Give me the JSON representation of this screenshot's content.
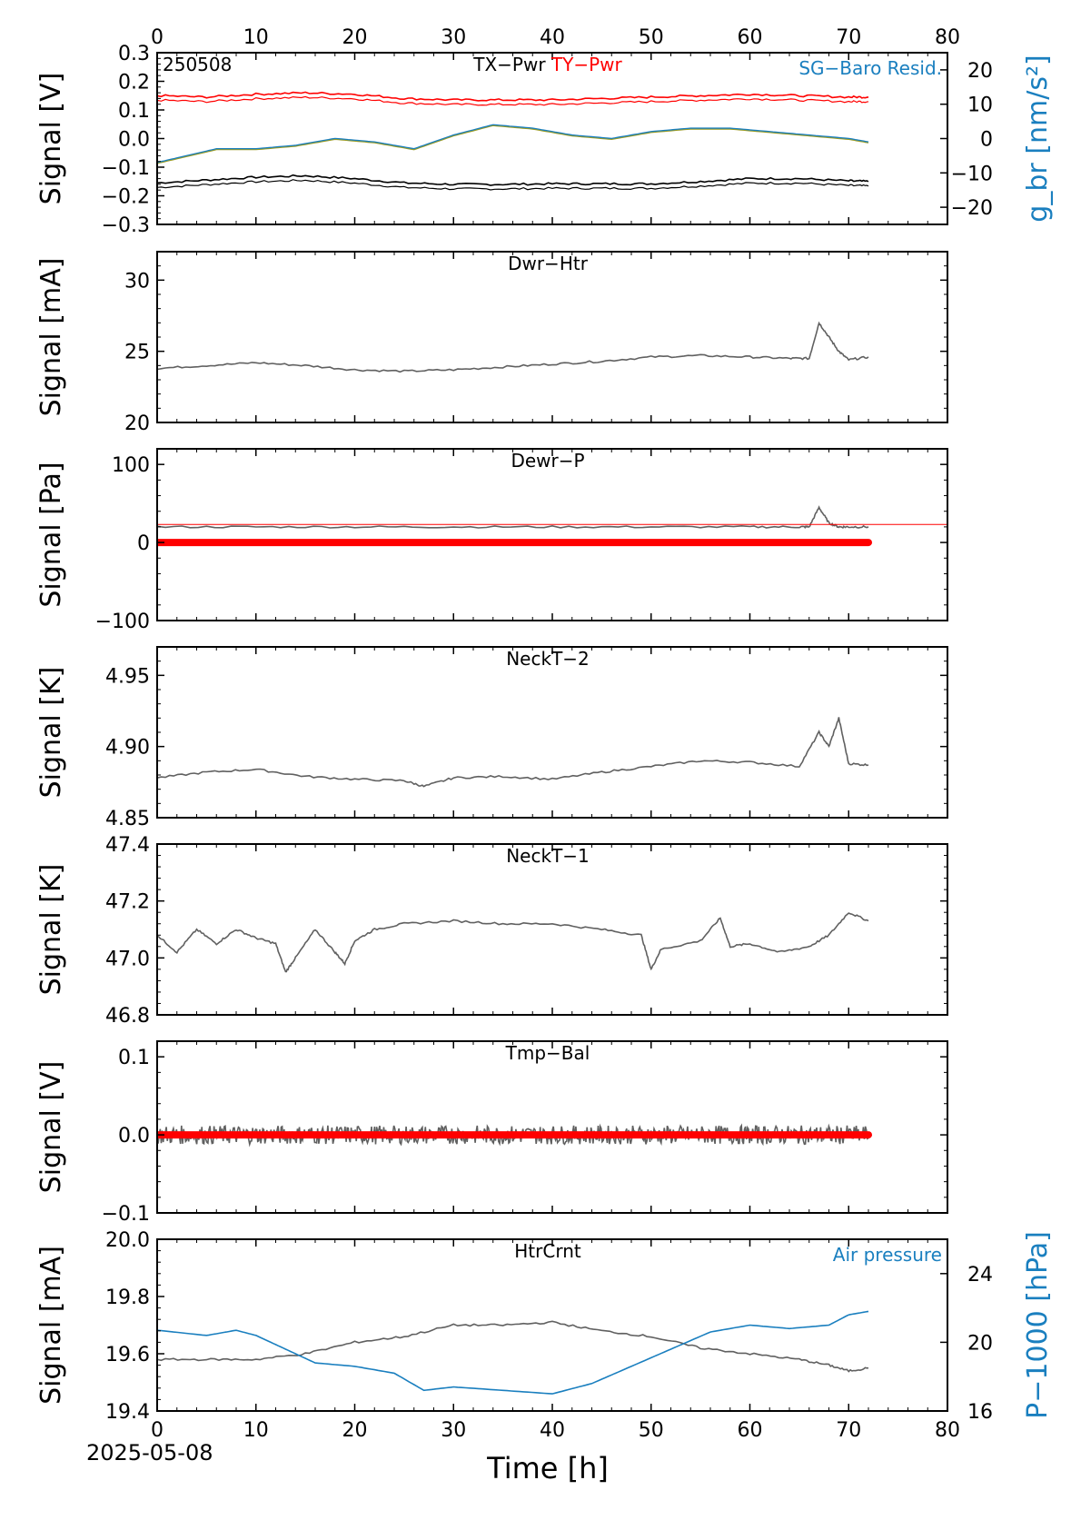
{
  "figure": {
    "date": "2025-05-08",
    "xlabel": "Time [h]",
    "xticks": [
      0,
      10,
      20,
      30,
      40,
      50,
      60,
      70,
      80
    ],
    "colors": {
      "black": "#000000",
      "red": "#ff0000",
      "blue": "#1a7fbf",
      "gray": "#606060",
      "olive": "#9a9a20"
    }
  },
  "chart_data": [
    {
      "type": "line",
      "id": "tx-ty",
      "label_left": "250508",
      "title_parts": [
        "TX−Pwr",
        "TY−Pwr"
      ],
      "title_right": "SG−Baro Resid.",
      "ylabel": "Signal [V]",
      "ylabel_right": "g_br [nm/s²]",
      "xlim": [
        0,
        80
      ],
      "ylim": [
        -0.3,
        0.3
      ],
      "yticks": [
        -0.3,
        -0.2,
        -0.1,
        0.0,
        0.1,
        0.2,
        0.3
      ],
      "ylim_right": [
        -25,
        25
      ],
      "yticks_right": [
        -20,
        -10,
        0,
        10,
        20
      ],
      "series": [
        {
          "name": "TX−Pwr",
          "color": "#000000",
          "x": [
            0,
            5,
            10,
            15,
            20,
            25,
            30,
            35,
            40,
            45,
            50,
            55,
            60,
            65,
            70,
            72
          ],
          "y": [
            -0.155,
            -0.145,
            -0.135,
            -0.13,
            -0.14,
            -0.155,
            -0.16,
            -0.16,
            -0.158,
            -0.158,
            -0.158,
            -0.15,
            -0.14,
            -0.14,
            -0.148,
            -0.15
          ]
        },
        {
          "name": "TY−Pwr",
          "color": "#ff0000",
          "x": [
            0,
            5,
            10,
            15,
            20,
            25,
            30,
            35,
            40,
            45,
            50,
            55,
            60,
            65,
            70,
            72
          ],
          "y": [
            0.15,
            0.145,
            0.155,
            0.16,
            0.155,
            0.14,
            0.135,
            0.135,
            0.135,
            0.14,
            0.145,
            0.15,
            0.155,
            0.15,
            0.145,
            0.145
          ]
        },
        {
          "name": "SG−Baro Resid.",
          "color": "#1a7fbf",
          "axis": "right",
          "x": [
            0,
            3,
            6,
            10,
            14,
            18,
            22,
            26,
            30,
            34,
            38,
            42,
            46,
            50,
            54,
            58,
            62,
            66,
            70,
            72
          ],
          "y": [
            -7,
            -5,
            -3,
            -3,
            -2,
            0,
            -1,
            -3,
            1,
            4,
            3,
            1,
            0,
            2,
            3,
            3,
            2,
            1,
            0,
            -1
          ]
        }
      ]
    },
    {
      "type": "line",
      "id": "dwr-htr",
      "title": "Dwr−Htr",
      "ylabel": "Signal [mA]",
      "xlim": [
        0,
        80
      ],
      "ylim": [
        20,
        32
      ],
      "yticks": [
        20,
        25,
        30
      ],
      "series": [
        {
          "color": "#606060",
          "x": [
            0,
            5,
            10,
            15,
            20,
            25,
            30,
            35,
            40,
            45,
            50,
            55,
            60,
            64,
            66,
            67,
            68,
            69,
            70,
            72
          ],
          "y": [
            23.8,
            24.0,
            24.2,
            24.0,
            23.7,
            23.6,
            23.7,
            23.9,
            24.1,
            24.3,
            24.6,
            24.7,
            24.6,
            24.5,
            24.5,
            27.0,
            26.0,
            25.0,
            24.4,
            24.6
          ]
        }
      ]
    },
    {
      "type": "line",
      "id": "dewr-p",
      "title": "Dewr−P",
      "ylabel": "Signal [Pa]",
      "xlim": [
        0,
        80
      ],
      "ylim": [
        -100,
        120
      ],
      "yticks": [
        -100,
        0,
        100
      ],
      "series": [
        {
          "color": "#606060",
          "x": [
            0,
            10,
            20,
            30,
            40,
            50,
            60,
            65,
            66,
            67,
            68,
            69,
            70,
            72
          ],
          "y": [
            20,
            20,
            20,
            20,
            20,
            20,
            20,
            20,
            20,
            45,
            25,
            20,
            20,
            20
          ]
        },
        {
          "color": "#ff0000",
          "x": [
            0,
            72
          ],
          "y": [
            0,
            0
          ],
          "style": "thick"
        },
        {
          "color": "#ff0000",
          "x": [
            0,
            80
          ],
          "y": [
            23,
            23
          ],
          "style": "thin"
        }
      ]
    },
    {
      "type": "line",
      "id": "neckt-2",
      "title": "NeckT−2",
      "ylabel": "Signal [K]",
      "xlim": [
        0,
        80
      ],
      "ylim": [
        4.85,
        4.97
      ],
      "yticks": [
        4.85,
        4.9,
        4.95
      ],
      "series": [
        {
          "color": "#606060",
          "x": [
            0,
            5,
            10,
            15,
            20,
            25,
            27,
            30,
            35,
            40,
            45,
            50,
            55,
            60,
            65,
            67,
            68,
            69,
            70,
            72
          ],
          "y": [
            4.878,
            4.882,
            4.884,
            4.879,
            4.877,
            4.876,
            4.872,
            4.878,
            4.879,
            4.877,
            4.882,
            4.886,
            4.89,
            4.889,
            4.886,
            4.91,
            4.9,
            4.92,
            4.888,
            4.887
          ]
        }
      ]
    },
    {
      "type": "line",
      "id": "neckt-1",
      "title": "NeckT−1",
      "ylabel": "Signal [K]",
      "xlim": [
        0,
        80
      ],
      "ylim": [
        46.8,
        47.4
      ],
      "yticks": [
        46.8,
        47.0,
        47.2,
        47.4
      ],
      "series": [
        {
          "color": "#606060",
          "x": [
            0,
            2,
            4,
            6,
            8,
            10,
            12,
            13,
            14,
            16,
            18,
            19,
            20,
            22,
            25,
            30,
            35,
            40,
            45,
            49,
            50,
            51,
            55,
            57,
            58,
            60,
            63,
            66,
            68,
            70,
            72
          ],
          "y": [
            47.08,
            47.02,
            47.1,
            47.05,
            47.1,
            47.07,
            47.05,
            46.95,
            47.0,
            47.1,
            47.02,
            46.98,
            47.06,
            47.1,
            47.12,
            47.13,
            47.12,
            47.12,
            47.1,
            47.08,
            46.96,
            47.03,
            47.06,
            47.14,
            47.04,
            47.05,
            47.02,
            47.04,
            47.08,
            47.16,
            47.13
          ]
        }
      ]
    },
    {
      "type": "line",
      "id": "tmp-bal",
      "title": "Tmp−Bal",
      "ylabel": "Signal [V]",
      "xlim": [
        0,
        80
      ],
      "ylim": [
        -0.1,
        0.12
      ],
      "yticks": [
        -0.1,
        0.0,
        0.1
      ],
      "series": [
        {
          "color": "#606060",
          "x": [
            0,
            72
          ],
          "y": [
            0.0,
            0.0
          ],
          "noise": 0.012
        },
        {
          "color": "#ff0000",
          "x": [
            0,
            72
          ],
          "y": [
            0,
            0
          ],
          "style": "thick"
        }
      ]
    },
    {
      "type": "line",
      "id": "htrcrnt",
      "title": "HtrCrnt",
      "title_right": "Air pressure",
      "ylabel": "Signal [mA]",
      "ylabel_right": "P−1000 [hPa]",
      "xlim": [
        0,
        80
      ],
      "ylim": [
        19.4,
        20.0
      ],
      "yticks": [
        19.4,
        19.6,
        19.8,
        20.0
      ],
      "ylim_right": [
        16,
        26
      ],
      "yticks_right": [
        16,
        20,
        24
      ],
      "series": [
        {
          "color": "#606060",
          "x": [
            0,
            5,
            10,
            15,
            20,
            25,
            30,
            35,
            40,
            45,
            50,
            55,
            60,
            65,
            68,
            70,
            72
          ],
          "y": [
            19.58,
            19.58,
            19.58,
            19.6,
            19.64,
            19.66,
            19.7,
            19.7,
            19.71,
            19.68,
            19.66,
            19.62,
            19.6,
            19.58,
            19.56,
            19.54,
            19.55
          ]
        },
        {
          "color": "#1a7fbf",
          "axis": "right",
          "x": [
            0,
            5,
            8,
            10,
            13,
            16,
            20,
            24,
            27,
            30,
            35,
            40,
            44,
            48,
            52,
            56,
            60,
            64,
            68,
            70,
            72
          ],
          "y": [
            20.7,
            20.4,
            20.7,
            20.4,
            19.6,
            18.8,
            18.6,
            18.2,
            17.2,
            17.4,
            17.2,
            17.0,
            17.6,
            18.6,
            19.6,
            20.6,
            21.0,
            20.8,
            21.0,
            21.6,
            21.8
          ]
        }
      ]
    }
  ]
}
